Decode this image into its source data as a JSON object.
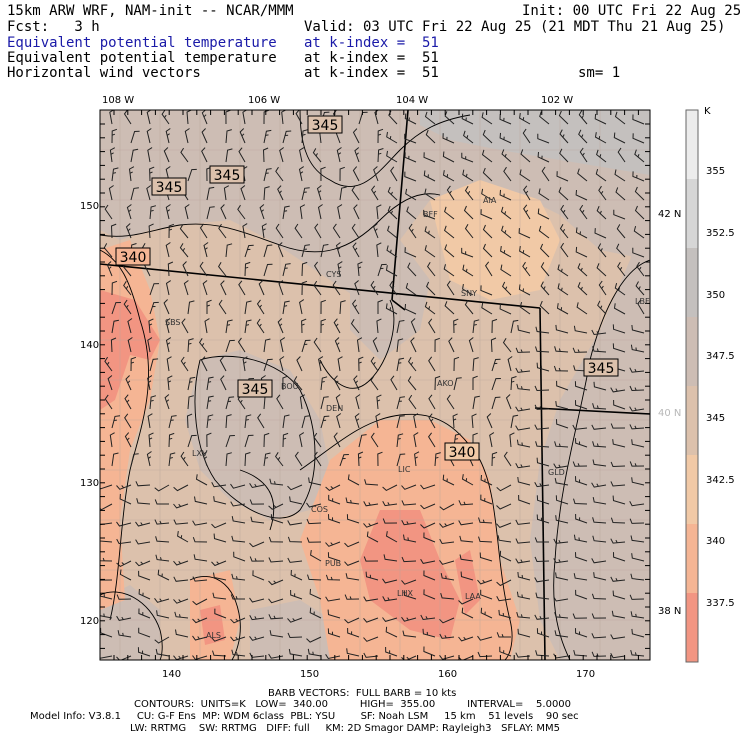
{
  "header": {
    "model_title": "15km ARW WRF, NAM-init -- NCAR/MMM",
    "init": "Init: 00 UTC Fri 22 Aug 25",
    "fcst": "Fcst:   3 h",
    "valid": "Valid: 03 UTC Fri 22 Aug 25 (21 MDT Thu 21 Aug 25)",
    "fields": [
      {
        "name": "Equivalent potential temperature",
        "level": "at k-index =  51"
      },
      {
        "name": "Equivalent potential temperature",
        "level": "at k-index =  51"
      },
      {
        "name": "Horizontal wind vectors",
        "level": "at k-index =  51"
      }
    ],
    "smoothing": "sm= 1"
  },
  "map": {
    "top_ticks": [
      "108 W",
      "106 W",
      "104 W",
      "102 W"
    ],
    "right_ticks": [
      "42 N",
      "40 N",
      "38 N"
    ],
    "x_ticks": [
      "140",
      "150",
      "160",
      "170"
    ],
    "y_ticks": [
      "150",
      "140",
      "130",
      "120"
    ],
    "contour_labels": [
      "345",
      "345",
      "345",
      "340",
      "345",
      "340",
      "345"
    ],
    "stations": [
      "AIA",
      "BFF",
      "CYS",
      "SNY",
      "LBF",
      "SBS",
      "AKO",
      "BOU",
      "DEN",
      "LXV",
      "LIC",
      "GLD",
      "COS",
      "PUB",
      "LHX",
      "LAA",
      "ALS"
    ],
    "colors": {
      "c355": "#ececec",
      "c352_5": "#d6d6d6",
      "c350": "#c4c0be",
      "c347_5": "#cdbdb4",
      "c345": "#dcc1ac",
      "c342_5": "#f1c9a6",
      "c340": "#f5b594",
      "c337_5": "#f29582"
    }
  },
  "colorbar": {
    "unit": "K",
    "labels": [
      "355",
      "352.5",
      "350",
      "347.5",
      "345",
      "342.5",
      "340",
      "337.5"
    ]
  },
  "footer": {
    "barb": "BARB VECTORS:  FULL BARB = 10 kts",
    "contours": "CONTOURS:  UNITS=K   LOW=  340.00          HIGH=  355.00          INTERVAL=    5.0000",
    "model_info": "Model Info: V3.8.1     CU: G-F Ens  MP: WDM 6class  PBL: YSU        SF: Noah LSM     15 km    51 levels    90 sec",
    "physics": "LW: RRTMG    SW: RRTMG   DIFF: full     KM: 2D Smagor DAMP: Rayleigh3   SFLAY: MM5"
  }
}
